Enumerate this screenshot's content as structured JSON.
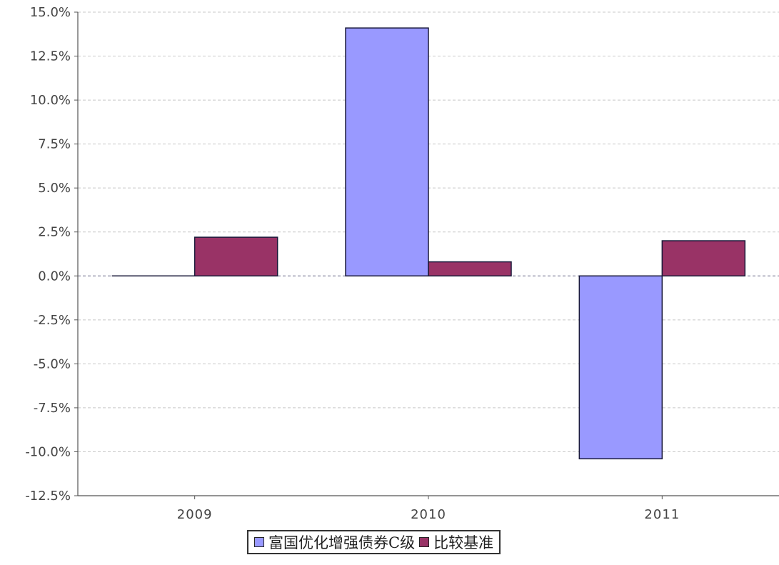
{
  "chart_data": {
    "type": "bar",
    "categories": [
      "2009",
      "2010",
      "2011"
    ],
    "series": [
      {
        "name": "富国优化增强债券C级",
        "color": "#9999ff",
        "values": [
          0.0,
          14.1,
          -10.4
        ]
      },
      {
        "name": "比较基准",
        "color": "#993366",
        "values": [
          2.2,
          0.8,
          2.0
        ]
      }
    ],
    "ylim": [
      -12.5,
      15.0
    ],
    "yticks": [
      "15.0%",
      "12.5%",
      "10.0%",
      "7.5%",
      "5.0%",
      "2.5%",
      "0.0%",
      "-2.5%",
      "-5.0%",
      "-7.5%",
      "-10.0%",
      "-12.5%"
    ],
    "ytick_values": [
      15.0,
      12.5,
      10.0,
      7.5,
      5.0,
      2.5,
      0.0,
      -2.5,
      -5.0,
      -7.5,
      -10.0,
      -12.5
    ],
    "grid": true,
    "legend_position": "bottom"
  }
}
